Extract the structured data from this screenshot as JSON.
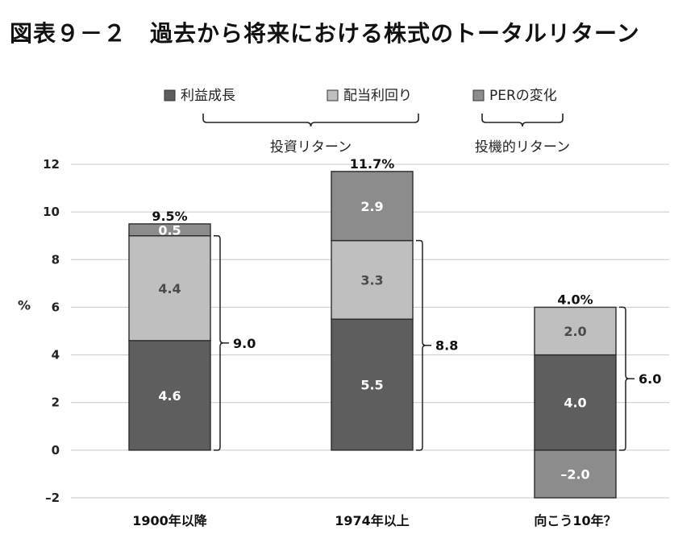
{
  "title": "図表９－２　過去から将来における株式のトータルリターン",
  "legend": {
    "items": [
      {
        "label": "利益成長",
        "color": "#5e5e5e"
      },
      {
        "label": "配当利回り",
        "color": "#bfbfbf"
      },
      {
        "label": "PERの変化",
        "color": "#8c8c8c"
      }
    ],
    "groups": [
      {
        "label": "投資リターン"
      },
      {
        "label": "投機的リターン"
      }
    ]
  },
  "chart_data": {
    "type": "bar",
    "stacked": true,
    "ylabel": "%",
    "ylim": [
      -2,
      12
    ],
    "yticks": [
      -2,
      0,
      2,
      4,
      6,
      8,
      10,
      12
    ],
    "grid": true,
    "legend_position": "top",
    "categories": [
      "1900年以降",
      "1974年以上",
      "向こう10年？"
    ],
    "series": [
      {
        "name": "利益成長",
        "values": [
          4.6,
          5.5,
          4.0
        ],
        "labels": [
          "4.6",
          "5.5",
          "4.0"
        ],
        "color": "#5e5e5e",
        "label_color": "#ffffff"
      },
      {
        "name": "配当利回り",
        "values": [
          4.4,
          3.3,
          2.0
        ],
        "labels": [
          "4.4",
          "3.3",
          "2.0"
        ],
        "color": "#bfbfbf",
        "label_color": "#4a4a4a"
      },
      {
        "name": "PERの変化",
        "values": [
          0.5,
          2.9,
          -2.0
        ],
        "labels": [
          "0.5",
          "2.9",
          "–2.0"
        ],
        "color": "#8c8c8c",
        "label_color": "#ffffff"
      }
    ],
    "totals": [
      "9.5%",
      "11.7%",
      "4.0%"
    ],
    "brace_values": [
      9.0,
      8.8,
      6.0
    ],
    "brace_labels": [
      "9.0",
      "8.8",
      "6.0"
    ]
  }
}
